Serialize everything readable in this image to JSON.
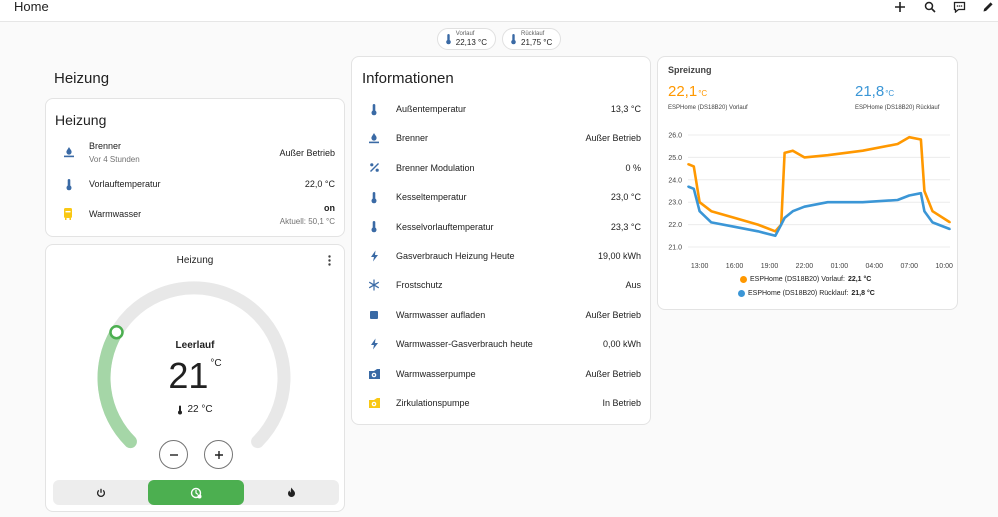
{
  "topbar": {
    "title": "Home",
    "tools": [
      "plus-icon",
      "search-icon",
      "assist-icon",
      "pencil-icon"
    ]
  },
  "chips": [
    {
      "label": "Vorlauf",
      "value": "22,13 °C"
    },
    {
      "label": "Rücklauf",
      "value": "21,75 °C"
    }
  ],
  "colors": {
    "accent": "#3a6aa5",
    "orange": "#ff9800",
    "blue": "#3b96d6",
    "green": "#4caf50",
    "arc_green": "#a5d6a7",
    "yellow": "#f9c814"
  },
  "heizung_section": {
    "title": "Heizung"
  },
  "heizung_card": {
    "title": "Heizung",
    "rows": [
      {
        "icon": "gas-burner-icon",
        "name": "Brenner",
        "sub": "Vor 4 Stunden",
        "value": "Außer Betrieb"
      },
      {
        "icon": "thermometer-icon",
        "name": "Vorlauftemperatur",
        "sub": "",
        "value": "22,0 °C"
      },
      {
        "icon": "water-boiler-icon",
        "name": "Warmwasser",
        "sub": "",
        "value": "on",
        "value_sub": "Aktuell: 50,1 °C"
      }
    ]
  },
  "thermostat": {
    "title": "Heizung",
    "state": "Leerlauf",
    "target": "21",
    "unit": "°C",
    "current": "22 °C",
    "level": 0.28,
    "modes": [
      "off",
      "auto",
      "heat"
    ]
  },
  "info_card": {
    "title": "Informationen",
    "rows": [
      {
        "icon": "thermometer-icon",
        "name": "Außentemperatur",
        "value": "13,3 °C"
      },
      {
        "icon": "gas-burner-icon",
        "name": "Brenner",
        "value": "Außer Betrieb"
      },
      {
        "icon": "percent-icon",
        "name": "Brenner Modulation",
        "value": "0 %"
      },
      {
        "icon": "thermometer-icon",
        "name": "Kesseltemperatur",
        "value": "23,0 °C"
      },
      {
        "icon": "thermometer-icon",
        "name": "Kesselvorlauftemperatur",
        "value": "23,3 °C"
      },
      {
        "icon": "flash-icon",
        "name": "Gasverbrauch Heizung Heute",
        "value": "19,00 kWh"
      },
      {
        "icon": "snowflake-icon",
        "name": "Frostschutz",
        "value": "Aus"
      },
      {
        "icon": "square-icon",
        "name": "Warmwasser aufladen",
        "value": "Außer Betrieb"
      },
      {
        "icon": "flash-icon",
        "name": "Warmwasser-Gasverbrauch heute",
        "value": "0,00 kWh"
      },
      {
        "icon": "pump-icon",
        "name": "Warmwasserpumpe",
        "value": "Außer Betrieb"
      },
      {
        "icon": "pump-icon",
        "name": "Zirkulationspumpe",
        "value": "In Betrieb"
      }
    ]
  },
  "spreizung": {
    "title": "Spreizung",
    "left": {
      "value": "22,1",
      "unit": "°C",
      "label": "ESPHome (DS18B20) Vorlauf"
    },
    "right": {
      "value": "21,8",
      "unit": "°C",
      "label": "ESPHome (DS18B20) Rücklauf"
    },
    "legend": [
      {
        "name": "ESPHome (DS18B20) Vorlauf:",
        "value": "22,1 °C"
      },
      {
        "name": "ESPHome (DS18B20) Rücklauf:",
        "value": "21,8 °C"
      }
    ]
  },
  "chart_data": {
    "type": "line",
    "x_ticks": [
      "13:00",
      "16:00",
      "19:00",
      "22:00",
      "01:00",
      "04:00",
      "07:00",
      "10:00"
    ],
    "y_ticks": [
      "26.0",
      "25.0",
      "24.0",
      "23.0",
      "22.0",
      "21.0"
    ],
    "ylim": [
      21.0,
      26.0
    ],
    "x_hours": [
      12.0,
      12.5,
      13.0,
      14.0,
      16.0,
      18.0,
      19.5,
      20.0,
      20.3,
      21.0,
      22.0,
      24.0,
      27.0,
      30.0,
      31.0,
      32.0,
      32.3,
      33.0,
      34.5
    ],
    "series": [
      {
        "name": "ESPHome (DS18B20) Vorlauf",
        "color": "#ff9800",
        "values": [
          24.7,
          24.6,
          23.0,
          22.6,
          22.3,
          22.0,
          21.7,
          22.0,
          25.2,
          25.3,
          25.0,
          25.1,
          25.3,
          25.6,
          25.9,
          25.8,
          23.5,
          22.6,
          22.1
        ]
      },
      {
        "name": "ESPHome (DS18B20) Rücklauf",
        "color": "#3b96d6",
        "values": [
          23.7,
          23.6,
          22.6,
          22.1,
          21.9,
          21.7,
          21.5,
          22.0,
          22.3,
          22.6,
          22.8,
          23.0,
          23.0,
          23.1,
          23.3,
          23.4,
          22.6,
          22.1,
          21.8
        ]
      }
    ]
  }
}
